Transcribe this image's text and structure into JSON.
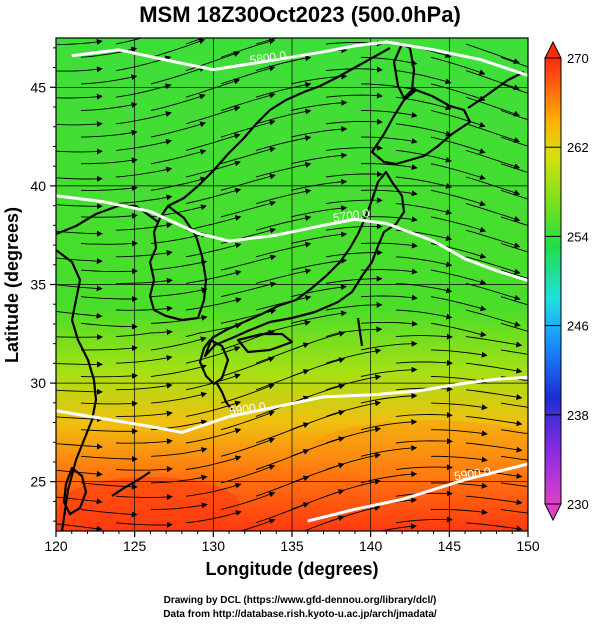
{
  "title": "MSM 18Z30Oct2023 (500.0hPa)",
  "xlabel": "Longitude (degrees)",
  "ylabel": "Latitude  (degrees)",
  "x_ticks": [
    "120",
    "125",
    "130",
    "135",
    "140",
    "145",
    "150"
  ],
  "y_ticks": [
    "25",
    "30",
    "35",
    "40",
    "45"
  ],
  "colorbar_ticks": [
    "270",
    "262",
    "254",
    "246",
    "238",
    "230"
  ],
  "contour_labels": [
    "5800.0",
    "5700.0",
    "5900.0",
    "5800.0",
    "5900.0"
  ],
  "credit_line1": "Drawing by DCL (https://www.gfd-dennou.org/library/dcl/)",
  "credit_line2": "Data from http://database.rish.kyoto-u.ac.jp/arch/jmadata/",
  "chart_data": {
    "type": "heatmap",
    "variable_range": [
      230,
      270
    ],
    "xlim": [
      120,
      150
    ],
    "ylim": [
      22.5,
      47.5
    ],
    "colorscale": [
      "#e040c8",
      "#8a2be2",
      "#1a2fd0",
      "#1890ff",
      "#20e0e0",
      "#22dd44",
      "#7ee01a",
      "#d6e010",
      "#ffb000",
      "#ff6010",
      "#ff2a10"
    ],
    "contours": [
      {
        "label": "5800.0",
        "path_lon_lat": [
          [
            121,
            46.6
          ],
          [
            124,
            46.9
          ],
          [
            127.5,
            46.3
          ],
          [
            130,
            45.9
          ],
          [
            134,
            46.4
          ],
          [
            137,
            46.8
          ],
          [
            139,
            47.1
          ],
          [
            141,
            47.3
          ],
          [
            144,
            46.9
          ],
          [
            147,
            46.4
          ],
          [
            150,
            45.6
          ]
        ]
      },
      {
        "label": "5700.0",
        "path_lon_lat": [
          [
            120,
            39.5
          ],
          [
            123,
            39.2
          ],
          [
            126,
            38.7
          ],
          [
            129,
            37.6
          ],
          [
            131,
            37.2
          ],
          [
            134,
            37.5
          ],
          [
            137,
            38.0
          ],
          [
            139,
            38.3
          ],
          [
            141,
            38.1
          ],
          [
            144,
            37.2
          ],
          [
            146,
            36.3
          ],
          [
            148,
            35.7
          ],
          [
            150,
            35.2
          ]
        ]
      },
      {
        "label": "5900.0",
        "path_lon_lat": [
          [
            120,
            28.6
          ],
          [
            123,
            28.2
          ],
          [
            126,
            27.8
          ],
          [
            128,
            27.5
          ],
          [
            131,
            28.3
          ],
          [
            134,
            28.8
          ],
          [
            137,
            29.3
          ],
          [
            140,
            29.4
          ],
          [
            143,
            29.6
          ],
          [
            146,
            30.0
          ],
          [
            148,
            30.2
          ],
          [
            150,
            30.3
          ]
        ]
      },
      {
        "label": "5900.0",
        "path_lon_lat": [
          [
            136,
            23.0
          ],
          [
            139,
            23.6
          ],
          [
            142,
            24.1
          ],
          [
            144,
            24.6
          ],
          [
            146,
            25.1
          ],
          [
            148,
            25.5
          ],
          [
            150,
            25.9
          ]
        ]
      }
    ]
  }
}
